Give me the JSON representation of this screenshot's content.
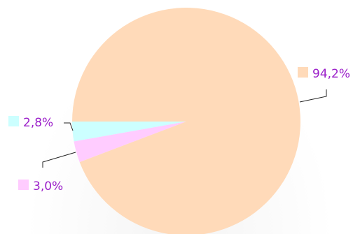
{
  "chart_data": {
    "type": "pie",
    "start_angle_deg": 180,
    "direction": "counterclockwise",
    "slices": [
      {
        "label": "2,8%",
        "value": 2.8,
        "color": "#ccffff",
        "marker": "left"
      },
      {
        "label": "3,0%",
        "value": 3.0,
        "color": "#ffccff",
        "marker": "left"
      },
      {
        "label": "94,2%",
        "value": 94.2,
        "color": "#ffdab9",
        "marker": "left"
      }
    ]
  }
}
